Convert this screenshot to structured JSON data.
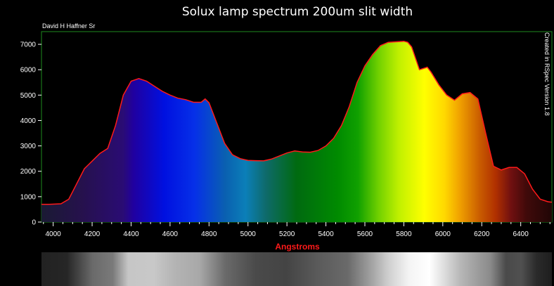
{
  "chart_data": {
    "type": "area",
    "title": "Solux lamp spectrum 200um slit width",
    "author": "David H Haffner Sr",
    "created_note": "Created in RSpec Version 1.8",
    "xlabel": "Angstroms",
    "ylabel": "",
    "xlim": [
      3940,
      6560
    ],
    "ylim": [
      0,
      7500
    ],
    "x_ticks": [
      "4000",
      "4200",
      "4400",
      "4600",
      "4800",
      "5000",
      "5200",
      "5400",
      "5600",
      "5800",
      "6000",
      "6200",
      "6400"
    ],
    "y_ticks": [
      "0",
      "1000",
      "2000",
      "3000",
      "4000",
      "5000",
      "6000",
      "7000"
    ],
    "grid": false,
    "plot_border_color": "#1e8a1e",
    "line_color": "#ff1a1a",
    "xlabel_color": "#ff1a1a",
    "x": [
      3940,
      3980,
      4040,
      4080,
      4120,
      4160,
      4200,
      4240,
      4280,
      4320,
      4360,
      4400,
      4440,
      4480,
      4520,
      4560,
      4600,
      4640,
      4680,
      4720,
      4760,
      4780,
      4800,
      4840,
      4880,
      4920,
      4960,
      5000,
      5040,
      5080,
      5120,
      5160,
      5200,
      5240,
      5280,
      5320,
      5360,
      5400,
      5440,
      5480,
      5520,
      5560,
      5600,
      5640,
      5680,
      5720,
      5760,
      5800,
      5820,
      5840,
      5880,
      5920,
      5940,
      5980,
      6020,
      6060,
      6100,
      6140,
      6180,
      6220,
      6260,
      6300,
      6340,
      6380,
      6420,
      6460,
      6500,
      6540,
      6560
    ],
    "y": [
      700,
      700,
      720,
      900,
      1500,
      2100,
      2400,
      2700,
      2900,
      3800,
      5000,
      5550,
      5650,
      5550,
      5350,
      5150,
      5000,
      4880,
      4820,
      4720,
      4720,
      4850,
      4700,
      3900,
      3100,
      2650,
      2500,
      2430,
      2420,
      2410,
      2480,
      2600,
      2720,
      2800,
      2760,
      2750,
      2820,
      3000,
      3300,
      3800,
      4550,
      5500,
      6150,
      6600,
      6950,
      7080,
      7100,
      7120,
      7080,
      6900,
      6000,
      6100,
      5900,
      5400,
      5000,
      4800,
      5050,
      5100,
      4850,
      3500,
      2200,
      2050,
      2150,
      2150,
      1900,
      1300,
      900,
      800,
      780
    ]
  }
}
